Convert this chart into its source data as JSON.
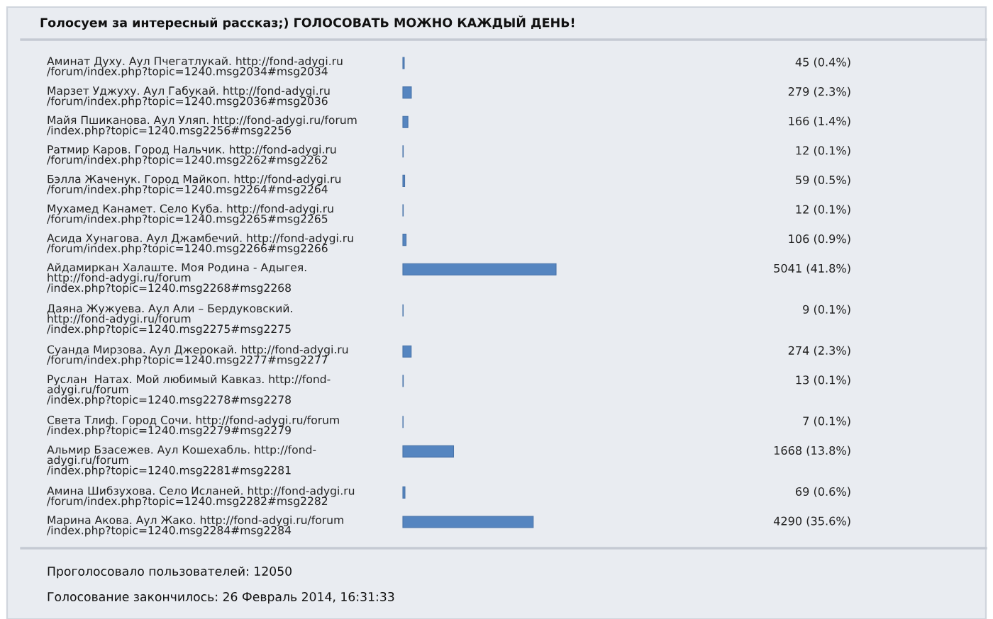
{
  "chart_data": {
    "type": "bar",
    "orientation": "horizontal",
    "title": "Голосуем за интересный рассказ;) ГОЛОСОВАТЬ МОЖНО КАЖДЫЙ ДЕНЬ!",
    "categories": [
      "Аминат Духу. Аул Пчегатлукай. http://fond-adygi.ru\n/forum/index.php?topic=1240.msg2034#msg2034",
      "Марзет Уджуху. Аул Габукай. http://fond-adygi.ru\n/forum/index.php?topic=1240.msg2036#msg2036",
      "Майя Пшиканова. Аул Уляп. http://fond-adygi.ru/forum\n/index.php?topic=1240.msg2256#msg2256",
      "Ратмир Каров. Город Нальчик. http://fond-adygi.ru\n/forum/index.php?topic=1240.msg2262#msg2262",
      "Бэлла Жаченук. Город Майкоп. http://fond-adygi.ru\n/forum/index.php?topic=1240.msg2264#msg2264",
      "Мухамед Канамет. Село Куба. http://fond-adygi.ru\n/forum/index.php?topic=1240.msg2265#msg2265",
      "Асида Хунагова. Аул Джамбечий. http://fond-adygi.ru\n/forum/index.php?topic=1240.msg2266#msg2266",
      "Айдамиркан Халаште. Моя Родина - Адыгея.\nhttp://fond-adygi.ru/forum\n/index.php?topic=1240.msg2268#msg2268",
      "Даяна Жужуева. Аул Али – Бердуковский.\nhttp://fond-adygi.ru/forum\n/index.php?topic=1240.msg2275#msg2275",
      "Суанда Мирзова. Аул Джерокай. http://fond-adygi.ru\n/forum/index.php?topic=1240.msg2277#msg2277",
      "Руслан  Натах. Мой любимый Кавказ. http://fond-\nadygi.ru/forum\n/index.php?topic=1240.msg2278#msg2278",
      "Света Тлиф. Город Сочи. http://fond-adygi.ru/forum\n/index.php?topic=1240.msg2279#msg2279",
      "Альмир Бзасежев. Аул Кошехабль. http://fond-\nadygi.ru/forum\n/index.php?topic=1240.msg2281#msg2281",
      "Амина Шибзухова. Село Исланей. http://fond-adygi.ru\n/forum/index.php?topic=1240.msg2282#msg2282",
      "Марина Акова. Аул Жако. http://fond-adygi.ru/forum\n/index.php?topic=1240.msg2284#msg2284"
    ],
    "values": [
      45,
      279,
      166,
      12,
      59,
      12,
      106,
      5041,
      9,
      274,
      13,
      7,
      1668,
      69,
      4290
    ],
    "value_labels": [
      "45 (0.4%)",
      "279 (2.3%)",
      "166 (1.4%)",
      "12 (0.1%)",
      "59 (0.5%)",
      "12 (0.1%)",
      "106 (0.9%)",
      "5041 (41.8%)",
      "9 (0.1%)",
      "274 (2.3%)",
      "13 (0.1%)",
      "7 (0.1%)",
      "1668 (13.8%)",
      "69 (0.6%)",
      "4290 (35.6%)"
    ],
    "color": "#5585c0",
    "annotations": [
      "Проголосовало пользователей: 12050",
      "Голосование закончилось: 26 Февраль 2014, 16:31:33"
    ]
  }
}
